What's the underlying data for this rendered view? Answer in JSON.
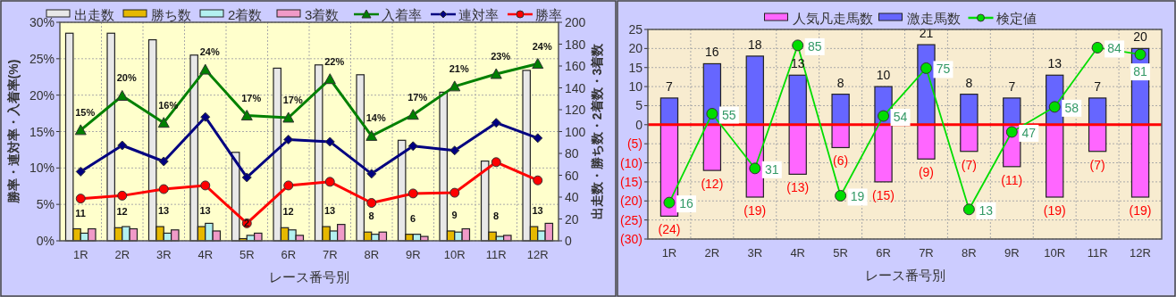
{
  "chart_data": [
    {
      "type": "bar",
      "categories": [
        "1R",
        "2R",
        "3R",
        "4R",
        "5R",
        "6R",
        "7R",
        "8R",
        "9R",
        "10R",
        "11R",
        "12R"
      ],
      "xlabel": "レース番号別",
      "ylabel": "勝率・連対率・入着率(%)",
      "y2label": "出走数・勝ち数・2着数・3着数",
      "ylim": [
        0,
        30
      ],
      "yticks": [
        {
          "value": 0,
          "label": "0%"
        },
        {
          "value": 5,
          "label": "5%"
        },
        {
          "value": 10,
          "label": "10%"
        },
        {
          "value": 15,
          "label": "15%"
        },
        {
          "value": 20,
          "label": "20%"
        },
        {
          "value": 25,
          "label": "25%"
        },
        {
          "value": 30,
          "label": "30%"
        }
      ],
      "y2lim": [
        0,
        200
      ],
      "y2ticks": [
        0,
        20,
        40,
        60,
        80,
        100,
        120,
        140,
        160,
        180,
        200
      ],
      "grid": true,
      "legend": "top",
      "series": [
        {
          "name": "出走数",
          "axis": "y2",
          "color": "#e8e8e8",
          "values": [
            190,
            190,
            184,
            170,
            81,
            158,
            161,
            152,
            92,
            136,
            73,
            156
          ]
        },
        {
          "name": "勝ち数",
          "axis": "y2",
          "color": "#e6b800",
          "values": [
            11,
            12,
            13,
            13,
            2,
            12,
            13,
            8,
            6,
            9,
            8,
            13
          ],
          "value_labels": [
            "11",
            "12",
            "13",
            "13",
            "2",
            "12",
            "13",
            "8",
            "6",
            "9",
            "8",
            "13"
          ]
        },
        {
          "name": "2着数",
          "axis": "y2",
          "color": "#b3f0f0",
          "values": [
            7,
            13,
            7,
            16,
            5,
            10,
            9,
            6,
            6,
            8,
            4,
            9
          ]
        },
        {
          "name": "3着数",
          "axis": "y2",
          "color": "#f09ac8",
          "values": [
            11,
            11,
            10,
            9,
            7,
            5,
            15,
            8,
            4,
            11,
            5,
            16
          ]
        },
        {
          "name": "入着率",
          "type": "line",
          "axis": "y",
          "color": "#008000",
          "marker": "triangle",
          "values": [
            15.2,
            19.9,
            16.2,
            23.5,
            17.2,
            16.9,
            22.2,
            14.4,
            17.3,
            21.2,
            22.9,
            24.3
          ],
          "value_labels": [
            "15%",
            "20%",
            "16%",
            "24%",
            "17%",
            "17%",
            "22%",
            "14%",
            "17%",
            "21%",
            "23%",
            "24%"
          ]
        },
        {
          "name": "連対率",
          "type": "line",
          "axis": "y",
          "color": "#000080",
          "marker": "diamond",
          "values": [
            9.5,
            13.1,
            10.9,
            17.0,
            8.7,
            13.9,
            13.6,
            9.2,
            13.0,
            12.4,
            16.2,
            14.1
          ]
        },
        {
          "name": "勝率",
          "type": "line",
          "axis": "y",
          "color": "#ff0000",
          "marker": "circle",
          "values": [
            5.8,
            6.2,
            7.1,
            7.6,
            2.4,
            7.6,
            8.1,
            5.2,
            6.5,
            6.6,
            10.8,
            8.3
          ]
        }
      ]
    },
    {
      "type": "bar",
      "stacked": true,
      "categories": [
        "1R",
        "2R",
        "3R",
        "4R",
        "5R",
        "6R",
        "7R",
        "8R",
        "9R",
        "10R",
        "11R",
        "12R"
      ],
      "xlabel": "レース番号別",
      "ylim": [
        -30,
        25
      ],
      "yticks": [
        {
          "value": -30,
          "label": "(30)"
        },
        {
          "value": -25,
          "label": "(25)"
        },
        {
          "value": -20,
          "label": "(20)"
        },
        {
          "value": -15,
          "label": "(15)"
        },
        {
          "value": -10,
          "label": "(10)"
        },
        {
          "value": -5,
          "label": "(5)"
        },
        0,
        5,
        10,
        15,
        20,
        25
      ],
      "y2lim": [
        0,
        92
      ],
      "grid": true,
      "legend": "top",
      "ref_lines": [
        {
          "axis": "y",
          "value": 0,
          "color": "#ff0000"
        }
      ],
      "series": [
        {
          "name": "人気凡走馬数",
          "color": "#ff66ff",
          "values": [
            -24,
            -12,
            -19,
            -13,
            -6,
            -15,
            -9,
            -7,
            -11,
            -19,
            -7,
            -19
          ],
          "value_labels": [
            "(24)",
            "(12)",
            "(19)",
            "(13)",
            "(6)",
            "(15)",
            "(9)",
            "(7)",
            "(11)",
            "(19)",
            "(7)",
            "(19)"
          ]
        },
        {
          "name": "激走馬数",
          "color": "#6666ff",
          "values": [
            7,
            16,
            18,
            13,
            8,
            10,
            21,
            8,
            7,
            13,
            7,
            20
          ],
          "value_labels": [
            "7",
            "16",
            "18",
            "13",
            "8",
            "10",
            "21",
            "8",
            "7",
            "13",
            "7",
            "20"
          ]
        },
        {
          "name": "検定値",
          "type": "line",
          "axis": "y2",
          "color": "#00dd00",
          "marker": "circle",
          "values": [
            16,
            55,
            31,
            85,
            19,
            54,
            75,
            13,
            47,
            58,
            84,
            81
          ],
          "value_labels": [
            "16",
            "55",
            "31",
            "85",
            "19",
            "54",
            "75",
            "13",
            "47",
            "58",
            "84",
            "81"
          ]
        }
      ]
    }
  ]
}
